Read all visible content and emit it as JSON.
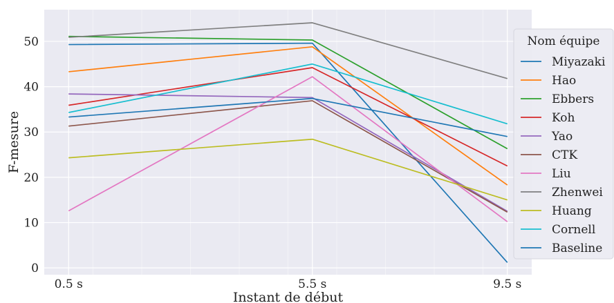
{
  "chart_data": {
    "type": "line",
    "xlabel": "Instant de début",
    "ylabel": "F-mesure",
    "x": [
      0.5,
      5.5,
      9.5
    ],
    "x_tick_labels": [
      "0.5 s",
      "5.5 s",
      "9.5 s"
    ],
    "ylim": [
      -1.5,
      57
    ],
    "y_ticks": [
      0,
      10,
      20,
      30,
      40,
      50
    ],
    "grid": true,
    "background": "#eaeaf2",
    "legend": {
      "title": "Nom équipe",
      "placement": "right"
    },
    "series": [
      {
        "name": "Miyazaki",
        "color": "#1f77b4",
        "values": [
          49.3,
          49.6,
          1.2
        ]
      },
      {
        "name": "Hao",
        "color": "#ff7f0e",
        "values": [
          43.3,
          48.8,
          18.3
        ]
      },
      {
        "name": "Ebbers",
        "color": "#2ca02c",
        "values": [
          51.1,
          50.3,
          26.3
        ]
      },
      {
        "name": "Koh",
        "color": "#d62728",
        "values": [
          35.9,
          44.2,
          22.5
        ]
      },
      {
        "name": "Yao",
        "color": "#9467bd",
        "values": [
          38.4,
          37.6,
          12.5
        ]
      },
      {
        "name": "CTK",
        "color": "#8c564b",
        "values": [
          31.3,
          36.9,
          12.3
        ]
      },
      {
        "name": "Liu",
        "color": "#e377c2",
        "values": [
          12.6,
          42.2,
          10.2
        ]
      },
      {
        "name": "Zhenwei",
        "color": "#7f7f7f",
        "values": [
          50.9,
          54.1,
          41.8
        ]
      },
      {
        "name": "Huang",
        "color": "#bcbd22",
        "values": [
          24.3,
          28.4,
          15.0
        ]
      },
      {
        "name": "Cornell",
        "color": "#17becf",
        "values": [
          34.3,
          45.0,
          31.8
        ]
      },
      {
        "name": "Baseline",
        "color": "#1f77b4",
        "values": [
          33.3,
          37.4,
          29.0
        ]
      }
    ]
  }
}
